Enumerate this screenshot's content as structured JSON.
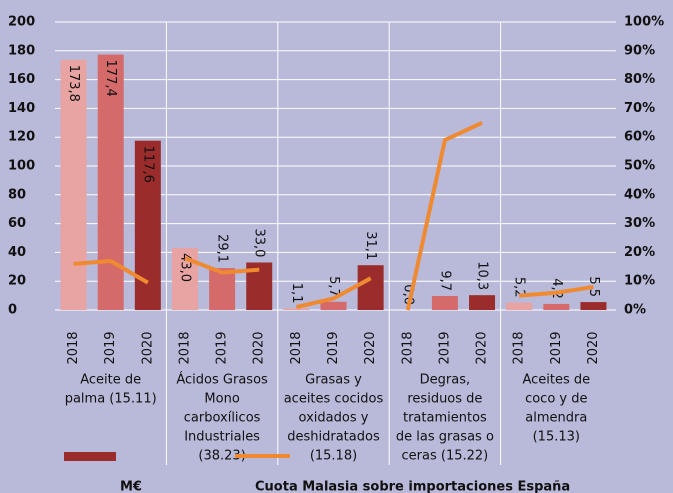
{
  "chart_data": {
    "type": "bar_line",
    "categories": [
      "2018",
      "2019",
      "2020",
      "2018",
      "2019",
      "2020",
      "2018",
      "2019",
      "2020",
      "2018",
      "2019",
      "2020",
      "2018",
      "2019",
      "2020"
    ],
    "groups": [
      {
        "label": [
          "Aceite de",
          "palma (15.11)"
        ]
      },
      {
        "label": [
          "Ácidos Grasos",
          "Mono",
          "carboxílicos",
          "Industriales",
          "(38.23)"
        ]
      },
      {
        "label": [
          "Grasas y",
          "aceites cocidos",
          "oxidados y",
          "deshidratados",
          "(15.18)"
        ]
      },
      {
        "label": [
          "Degras,",
          "residuos de",
          "tratamientos",
          "de las grasas o",
          "ceras (15.22)"
        ]
      },
      {
        "label": [
          "Aceites de",
          "coco y de",
          "almendra",
          "(15.13)"
        ]
      }
    ],
    "series": [
      {
        "name": "M€",
        "color": "#9b2c2c",
        "bar_colors": [
          "#e8a3a3",
          "#d46a6a",
          "#9b2c2c"
        ],
        "values": [
          173.8,
          177.4,
          117.6,
          43.0,
          29.1,
          33.0,
          1.1,
          5.7,
          31.1,
          0.0,
          9.7,
          10.3,
          5.2,
          4.2,
          5.5
        ],
        "value_labels": [
          "173,8",
          "177,4",
          "117,6",
          "43,0",
          "29,1",
          "33,0",
          "1,1",
          "5,7",
          "31,1",
          "0,0",
          "9,7",
          "10,3",
          "5,2",
          "4,2",
          "5,5"
        ]
      },
      {
        "name": "Cuota Malasia sobre importaciones España",
        "color": "#f08a30",
        "axis": "y2",
        "values": [
          16,
          17,
          9.5,
          18,
          13,
          14,
          1,
          4,
          11,
          0,
          59,
          65,
          5,
          6,
          8
        ]
      }
    ],
    "ylim": [
      0,
      200
    ],
    "yticks": [
      0,
      20,
      40,
      60,
      80,
      100,
      120,
      140,
      160,
      180,
      200
    ],
    "y2lim": [
      0,
      100
    ],
    "y2ticks": [
      {
        "value": 0,
        "label": "0%"
      },
      {
        "value": 10,
        "label": "10%"
      },
      {
        "value": 20,
        "label": "20%"
      },
      {
        "value": 30,
        "label": "30%"
      },
      {
        "value": 40,
        "label": "40%"
      },
      {
        "value": 50,
        "label": "50%"
      },
      {
        "value": 60,
        "label": "60%"
      },
      {
        "value": 70,
        "label": "70%"
      },
      {
        "value": 80,
        "label": "80%"
      },
      {
        "value": 90,
        "label": "90%"
      },
      {
        "value": 100,
        "label": "100%"
      }
    ],
    "grid": true
  }
}
